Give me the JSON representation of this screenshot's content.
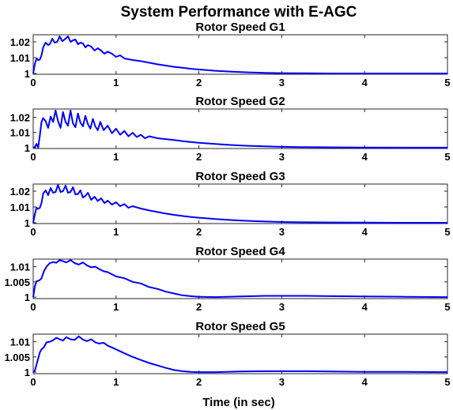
{
  "title": "System Performance with E-AGC",
  "xlabel": "Time (in sec)",
  "chart_data": [
    {
      "type": "line",
      "title": "Rotor Speed G1",
      "xlim": [
        0,
        5
      ],
      "ylim": [
        0.9995,
        1.0245
      ],
      "xticks": [
        "0",
        "1",
        "2",
        "3",
        "4",
        "5"
      ],
      "yticks": [
        {
          "value": 1,
          "label": "1"
        },
        {
          "value": 1.01,
          "label": "1.01"
        },
        {
          "value": 1.02,
          "label": "1.02"
        }
      ],
      "color": "#0000ff",
      "x": [
        0,
        0.02,
        0.04,
        0.06,
        0.08,
        0.1,
        0.12,
        0.15,
        0.18,
        0.2,
        0.23,
        0.26,
        0.29,
        0.32,
        0.35,
        0.38,
        0.42,
        0.45,
        0.48,
        0.51,
        0.54,
        0.57,
        0.6,
        0.63,
        0.66,
        0.7,
        0.74,
        0.78,
        0.82,
        0.86,
        0.9,
        0.95,
        1.0,
        1.05,
        1.1,
        1.2,
        1.3,
        1.4,
        1.5,
        1.6,
        1.7,
        1.8,
        1.9,
        2.0,
        2.2,
        2.4,
        2.6,
        2.8,
        3.0,
        3.3,
        3.6,
        4.0,
        4.5,
        5.0
      ],
      "y": [
        1.0,
        1.006,
        1.0095,
        1.0085,
        1.0088,
        1.0115,
        1.0165,
        1.0195,
        1.018,
        1.0185,
        1.022,
        1.0195,
        1.02,
        1.0235,
        1.0205,
        1.0215,
        1.0235,
        1.02,
        1.021,
        1.0215,
        1.0185,
        1.0195,
        1.019,
        1.0165,
        1.018,
        1.017,
        1.0145,
        1.016,
        1.0145,
        1.0125,
        1.0138,
        1.0125,
        1.0105,
        1.0115,
        1.0095,
        1.0085,
        1.0078,
        1.0068,
        1.0058,
        1.005,
        1.0042,
        1.0036,
        1.003,
        1.0025,
        1.0017,
        1.0011,
        1.0007,
        1.0004,
        1.0002,
        1.0001,
        1.0,
        1.0,
        1.0,
        1.0
      ]
    },
    {
      "type": "line",
      "title": "Rotor Speed G2",
      "xlim": [
        0,
        5
      ],
      "ylim": [
        0.9994,
        1.0255
      ],
      "xticks": [
        "0",
        "1",
        "2",
        "3",
        "4",
        "5"
      ],
      "yticks": [
        {
          "value": 1,
          "label": "1"
        },
        {
          "value": 1.01,
          "label": "1.01"
        },
        {
          "value": 1.02,
          "label": "1.02"
        }
      ],
      "color": "#0000ff",
      "x": [
        0,
        0.02,
        0.04,
        0.06,
        0.08,
        0.1,
        0.12,
        0.15,
        0.18,
        0.21,
        0.24,
        0.27,
        0.3,
        0.33,
        0.36,
        0.39,
        0.42,
        0.45,
        0.48,
        0.51,
        0.54,
        0.57,
        0.6,
        0.63,
        0.66,
        0.69,
        0.72,
        0.75,
        0.78,
        0.81,
        0.85,
        0.9,
        0.95,
        1.0,
        1.05,
        1.1,
        1.15,
        1.2,
        1.25,
        1.3,
        1.35,
        1.4,
        1.5,
        1.6,
        1.7,
        1.8,
        1.9,
        2.0,
        2.2,
        2.4,
        2.6,
        2.8,
        3.0,
        3.3,
        3.6,
        4.0,
        4.5,
        5.0
      ],
      "y": [
        1.0,
        1.0005,
        1.0025,
        1.0,
        1.008,
        1.017,
        1.0195,
        1.0175,
        1.013,
        1.0205,
        1.017,
        1.0245,
        1.0175,
        1.013,
        1.0235,
        1.017,
        1.0145,
        1.0245,
        1.016,
        1.0135,
        1.0225,
        1.0165,
        1.014,
        1.021,
        1.0155,
        1.0125,
        1.019,
        1.014,
        1.0115,
        1.017,
        1.0115,
        1.0145,
        1.0095,
        1.0125,
        1.0085,
        1.011,
        1.0075,
        1.0098,
        1.007,
        1.0085,
        1.0062,
        1.0075,
        1.0062,
        1.0056,
        1.005,
        1.0043,
        1.0037,
        1.0032,
        1.0024,
        1.0017,
        1.0012,
        1.0008,
        1.0005,
        1.0003,
        1.0002,
        1.0001,
        1.0,
        1.0
      ]
    },
    {
      "type": "line",
      "title": "Rotor Speed G3",
      "xlim": [
        0,
        5
      ],
      "ylim": [
        0.9995,
        1.0245
      ],
      "xticks": [
        "0",
        "1",
        "2",
        "3",
        "4",
        "5"
      ],
      "yticks": [
        {
          "value": 1,
          "label": "1"
        },
        {
          "value": 1.01,
          "label": "1.01"
        },
        {
          "value": 1.02,
          "label": "1.02"
        }
      ],
      "color": "#0000ff",
      "x": [
        0,
        0.02,
        0.04,
        0.06,
        0.08,
        0.1,
        0.12,
        0.15,
        0.18,
        0.21,
        0.24,
        0.27,
        0.3,
        0.33,
        0.36,
        0.39,
        0.42,
        0.45,
        0.48,
        0.51,
        0.54,
        0.57,
        0.6,
        0.63,
        0.66,
        0.7,
        0.74,
        0.78,
        0.82,
        0.86,
        0.9,
        0.95,
        1.0,
        1.05,
        1.1,
        1.15,
        1.2,
        1.3,
        1.4,
        1.5,
        1.6,
        1.7,
        1.8,
        1.9,
        2.0,
        2.2,
        2.4,
        2.6,
        2.8,
        3.0,
        3.3,
        3.6,
        4.0,
        4.5,
        5.0
      ],
      "y": [
        1.0,
        1.0055,
        1.0095,
        1.0088,
        1.0095,
        1.0125,
        1.0185,
        1.0205,
        1.0175,
        1.022,
        1.019,
        1.0195,
        1.024,
        1.0195,
        1.02,
        1.0235,
        1.019,
        1.0195,
        1.0225,
        1.018,
        1.0182,
        1.0205,
        1.016,
        1.017,
        1.019,
        1.0145,
        1.0165,
        1.0138,
        1.0155,
        1.0125,
        1.014,
        1.0115,
        1.013,
        1.0105,
        1.0118,
        1.0095,
        1.0105,
        1.009,
        1.0078,
        1.0068,
        1.0058,
        1.005,
        1.0043,
        1.0037,
        1.0032,
        1.0024,
        1.0017,
        1.0012,
        1.0008,
        1.0005,
        1.0003,
        1.0002,
        1.0001,
        1.0,
        1.0
      ]
    },
    {
      "type": "line",
      "title": "Rotor Speed G4",
      "xlim": [
        0,
        5
      ],
      "ylim": [
        0.9995,
        1.0125
      ],
      "xticks": [
        "0",
        "1",
        "2",
        "3",
        "4",
        "5"
      ],
      "yticks": [
        {
          "value": 1,
          "label": "1"
        },
        {
          "value": 1.005,
          "label": "1.005"
        },
        {
          "value": 1.01,
          "label": "1.01"
        }
      ],
      "color": "#0000ff",
      "x": [
        0,
        0.02,
        0.04,
        0.06,
        0.08,
        0.1,
        0.13,
        0.16,
        0.2,
        0.24,
        0.28,
        0.32,
        0.36,
        0.4,
        0.45,
        0.5,
        0.55,
        0.6,
        0.65,
        0.7,
        0.75,
        0.8,
        0.85,
        0.9,
        1.0,
        1.1,
        1.2,
        1.3,
        1.4,
        1.5,
        1.6,
        1.7,
        1.8,
        1.9,
        2.0,
        2.2,
        2.5,
        2.8,
        3.0,
        3.3,
        3.6,
        4.0,
        4.5,
        5.0
      ],
      "y": [
        1.0,
        1.0035,
        1.0052,
        1.0054,
        1.0056,
        1.0062,
        1.0085,
        1.01,
        1.0112,
        1.0115,
        1.0113,
        1.0122,
        1.0118,
        1.0114,
        1.0122,
        1.0112,
        1.0107,
        1.0114,
        1.0104,
        1.0098,
        1.01,
        1.0092,
        1.0085,
        1.0082,
        1.0068,
        1.0062,
        1.005,
        1.0045,
        1.0033,
        1.0027,
        1.0018,
        1.0012,
        1.0006,
        1.0003,
        1.0001,
        1.0,
        1.0002,
        1.0004,
        1.0004,
        1.0004,
        1.0003,
        1.0002,
        1.0001,
        1.0
      ]
    },
    {
      "type": "line",
      "title": "Rotor Speed G5",
      "xlim": [
        0,
        5
      ],
      "ylim": [
        0.9995,
        1.0125
      ],
      "xticks": [
        "0",
        "1",
        "2",
        "3",
        "4",
        "5"
      ],
      "yticks": [
        {
          "value": 1,
          "label": "1"
        },
        {
          "value": 1.005,
          "label": "1.005"
        },
        {
          "value": 1.01,
          "label": "1.01"
        }
      ],
      "color": "#0000ff",
      "x": [
        0,
        0.02,
        0.04,
        0.06,
        0.08,
        0.1,
        0.13,
        0.16,
        0.2,
        0.24,
        0.28,
        0.32,
        0.36,
        0.4,
        0.45,
        0.5,
        0.55,
        0.6,
        0.65,
        0.7,
        0.75,
        0.8,
        0.85,
        0.9,
        1.0,
        1.1,
        1.2,
        1.3,
        1.4,
        1.5,
        1.6,
        1.7,
        1.8,
        1.9,
        2.0,
        2.2,
        2.5,
        2.8,
        3.0,
        3.3,
        3.6,
        4.0,
        4.5,
        5.0
      ],
      "y": [
        1.0,
        1.0005,
        1.0025,
        1.0045,
        1.0065,
        1.0075,
        1.0082,
        1.0098,
        1.01,
        1.0105,
        1.0113,
        1.0108,
        1.0104,
        1.0115,
        1.0108,
        1.0106,
        1.0118,
        1.0107,
        1.0102,
        1.0108,
        1.0098,
        1.0094,
        1.0097,
        1.0087,
        1.0075,
        1.0062,
        1.005,
        1.004,
        1.003,
        1.0022,
        1.0014,
        1.0007,
        1.0003,
        1.0001,
        1.0,
        1.0,
        1.0002,
        1.0003,
        1.0003,
        1.0003,
        1.0002,
        1.0001,
        1.0001,
        1.0
      ]
    }
  ]
}
